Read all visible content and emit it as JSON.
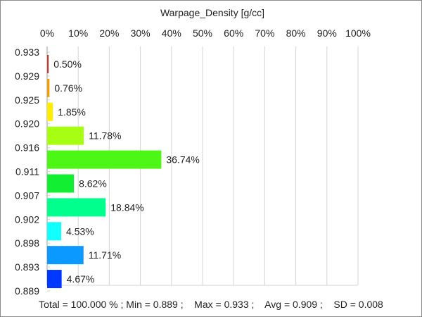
{
  "chart_data": {
    "type": "bar",
    "orientation": "horizontal",
    "title": "Warpage_Density [g/cc]",
    "x_axis": {
      "position": "top",
      "range": [
        0,
        100
      ],
      "ticks": [
        "0%",
        "10%",
        "20%",
        "30%",
        "40%",
        "50%",
        "60%",
        "70%",
        "80%",
        "90%",
        "100%"
      ],
      "grid": true
    },
    "y_axis": {
      "ticks": [
        "0.933",
        "0.929",
        "0.925",
        "0.920",
        "0.916",
        "0.911",
        "0.907",
        "0.902",
        "0.898",
        "0.893",
        "0.889"
      ]
    },
    "bars": [
      {
        "value": 0.5,
        "label": "0.50%",
        "color": "#c0392b"
      },
      {
        "value": 0.76,
        "label": "0.76%",
        "color": "#f0a000"
      },
      {
        "value": 1.85,
        "label": "1.85%",
        "color": "#ffee00"
      },
      {
        "value": 11.78,
        "label": "11.78%",
        "color": "#a6ff12"
      },
      {
        "value": 36.74,
        "label": "36.74%",
        "color": "#4cf715"
      },
      {
        "value": 8.62,
        "label": "8.62%",
        "color": "#12ee32"
      },
      {
        "value": 18.84,
        "label": "18.84%",
        "color": "#00ff8c"
      },
      {
        "value": 4.53,
        "label": "4.53%",
        "color": "#12ffff"
      },
      {
        "value": 11.71,
        "label": "11.71%",
        "color": "#0b98ff"
      },
      {
        "value": 4.67,
        "label": "4.67%",
        "color": "#0038ff"
      }
    ],
    "footer": "Total = 100.000 % ; Min = 0.889 ;    Max = 0.933 ;    Avg = 0.909 ;    SD = 0.008"
  }
}
